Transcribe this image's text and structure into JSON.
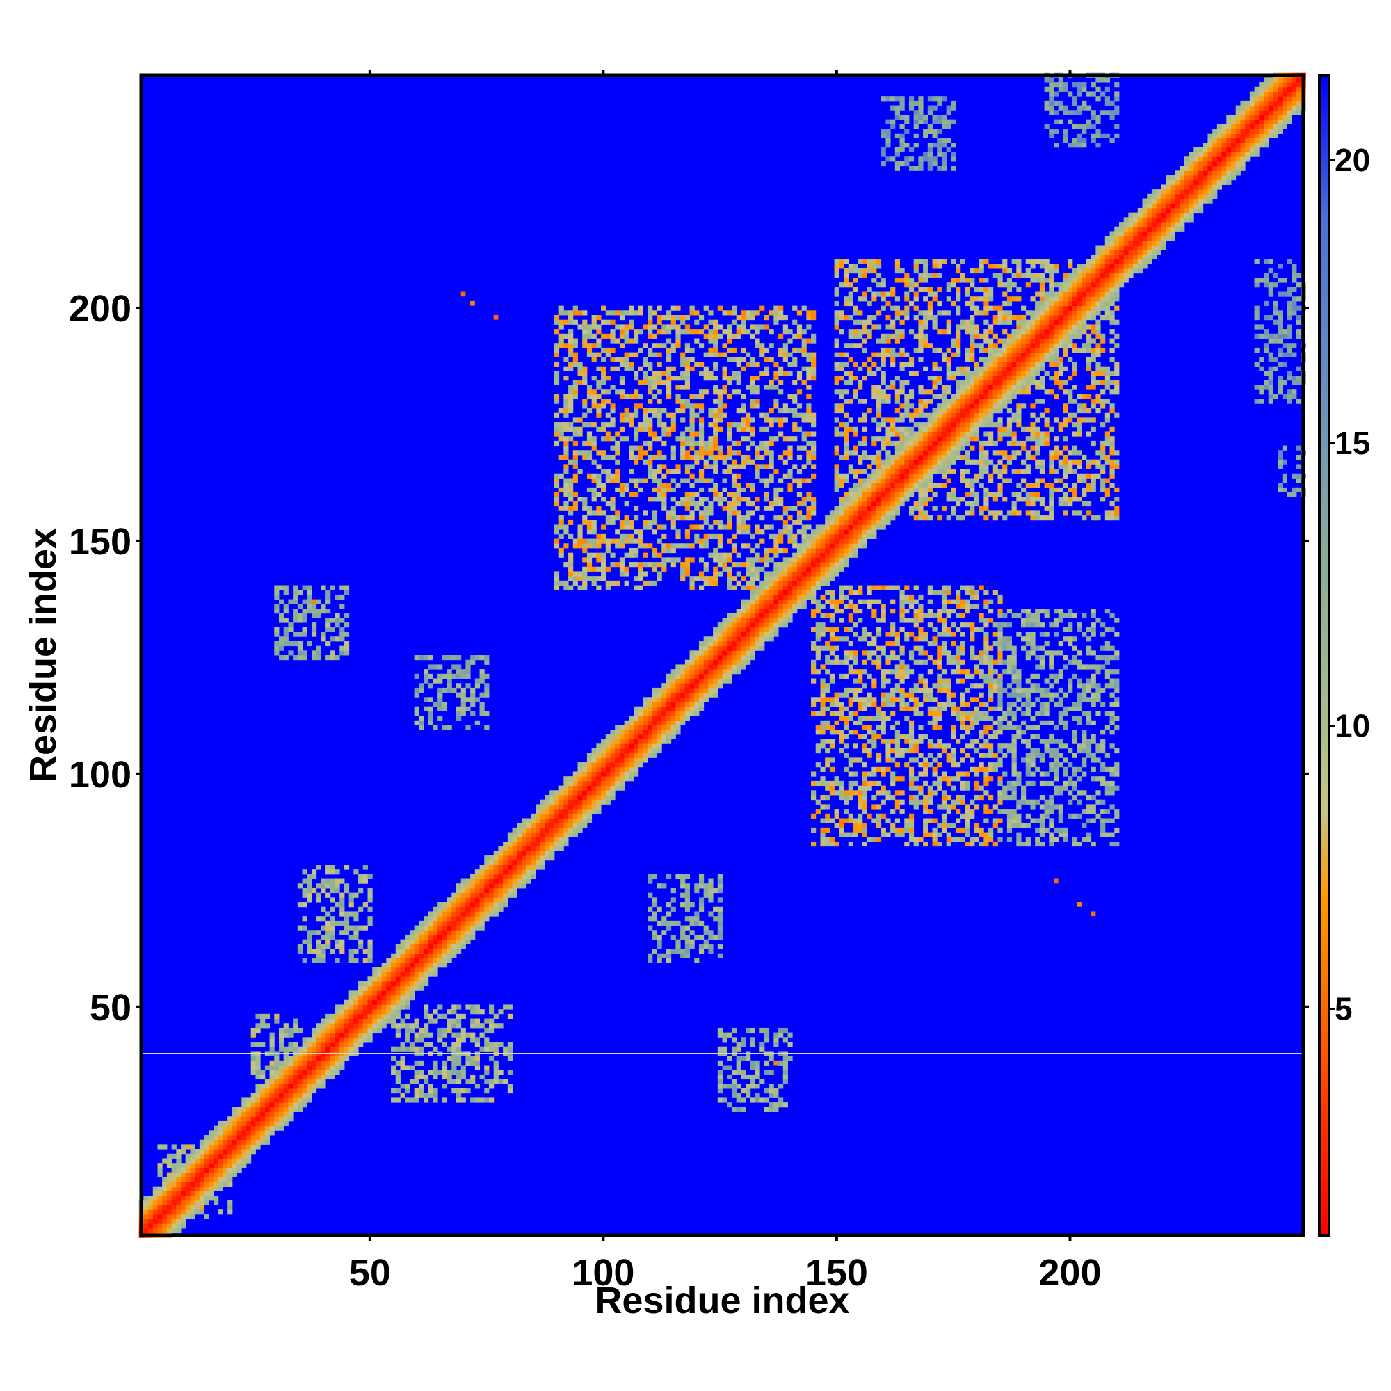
{
  "chart_data": {
    "type": "heatmap",
    "title": "",
    "xlabel": "Residue index",
    "ylabel": "Residue index",
    "xlim": [
      1,
      250
    ],
    "ylim": [
      1,
      250
    ],
    "x_ticks": [
      50,
      100,
      150,
      200
    ],
    "y_ticks": [
      50,
      100,
      150,
      200
    ],
    "x_tick_labels": [
      "50",
      "100",
      "150",
      "200"
    ],
    "y_tick_labels": [
      "50",
      "100",
      "150",
      "200"
    ],
    "colorbar": {
      "range": [
        1,
        21.5
      ],
      "ticks": [
        5,
        10,
        15,
        20
      ],
      "tick_labels": [
        "5",
        "10",
        "15",
        "20"
      ],
      "stops": [
        {
          "value": 1,
          "color": "#ff0000"
        },
        {
          "value": 3,
          "color": "#ff3300"
        },
        {
          "value": 5,
          "color": "#ff6a00"
        },
        {
          "value": 7,
          "color": "#ff9a00"
        },
        {
          "value": 8.5,
          "color": "#c8c488"
        },
        {
          "value": 10,
          "color": "#a9bd8c"
        },
        {
          "value": 13,
          "color": "#8aab98"
        },
        {
          "value": 16,
          "color": "#6a8ebf"
        },
        {
          "value": 19,
          "color": "#4b6fd8"
        },
        {
          "value": 21.5,
          "color": "#0000ff"
        }
      ]
    },
    "background_value": 21.5,
    "grid": false,
    "diagonal_band": {
      "start": 1,
      "end": 250,
      "core_value": 1.5,
      "half_width": 7
    },
    "contact_regions": [
      {
        "x": [
          5,
          20
        ],
        "y": [
          5,
          20
        ],
        "value": 10
      },
      {
        "x": [
          25,
          35
        ],
        "y": [
          35,
          48
        ],
        "value": 11
      },
      {
        "x": [
          35,
          50
        ],
        "y": [
          60,
          80
        ],
        "value": 11
      },
      {
        "x": [
          55,
          80
        ],
        "y": [
          30,
          50
        ],
        "value": 11
      },
      {
        "x": [
          30,
          45
        ],
        "y": [
          125,
          140
        ],
        "value": 12
      },
      {
        "x": [
          60,
          75
        ],
        "y": [
          110,
          125
        ],
        "value": 12
      },
      {
        "x": [
          110,
          125
        ],
        "y": [
          60,
          78
        ],
        "value": 12
      },
      {
        "x": [
          125,
          140
        ],
        "y": [
          28,
          45
        ],
        "value": 12
      },
      {
        "x": [
          90,
          145
        ],
        "y": [
          140,
          200
        ],
        "value": 9
      },
      {
        "x": [
          150,
          210
        ],
        "y": [
          155,
          210
        ],
        "value": 9
      },
      {
        "x": [
          145,
          185
        ],
        "y": [
          85,
          140
        ],
        "value": 9
      },
      {
        "x": [
          185,
          210
        ],
        "y": [
          85,
          135
        ],
        "value": 12
      },
      {
        "x": [
          160,
          175
        ],
        "y": [
          230,
          245
        ],
        "value": 14
      },
      {
        "x": [
          195,
          210
        ],
        "y": [
          235,
          250
        ],
        "value": 14
      },
      {
        "x": [
          240,
          250
        ],
        "y": [
          180,
          210
        ],
        "value": 14
      },
      {
        "x": [
          245,
          250
        ],
        "y": [
          160,
          170
        ],
        "value": 14
      }
    ],
    "hot_spots": [
      {
        "x": 70,
        "y": 203,
        "value": 5
      },
      {
        "x": 72,
        "y": 201,
        "value": 6
      },
      {
        "x": 77,
        "y": 198,
        "value": 5
      },
      {
        "x": 197,
        "y": 77,
        "value": 5
      },
      {
        "x": 202,
        "y": 72,
        "value": 6
      },
      {
        "x": 205,
        "y": 70,
        "value": 5
      },
      {
        "x": 38,
        "y": 137,
        "value": 6
      },
      {
        "x": 137,
        "y": 38,
        "value": 6
      }
    ],
    "reference_line": {
      "y": 40
    }
  }
}
